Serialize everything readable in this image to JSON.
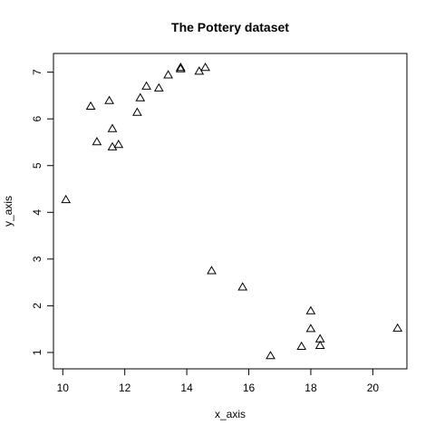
{
  "chart_data": {
    "type": "scatter",
    "title": "The Pottery dataset",
    "xlabel": "x_axis",
    "ylabel": "y_axis",
    "xlim": [
      9.7,
      21.1
    ],
    "ylim": [
      0.65,
      7.4
    ],
    "xticks": [
      10,
      12,
      14,
      16,
      18,
      20
    ],
    "yticks": [
      1,
      2,
      3,
      4,
      5,
      6,
      7
    ],
    "marker": "open-triangle",
    "grid": false,
    "series": [
      {
        "points": [
          {
            "x": 10.1,
            "y": 4.26
          },
          {
            "x": 10.9,
            "y": 6.26
          },
          {
            "x": 11.1,
            "y": 5.5
          },
          {
            "x": 11.5,
            "y": 6.38
          },
          {
            "x": 11.6,
            "y": 5.78
          },
          {
            "x": 11.6,
            "y": 5.39
          },
          {
            "x": 11.8,
            "y": 5.44
          },
          {
            "x": 12.4,
            "y": 6.13
          },
          {
            "x": 12.5,
            "y": 6.44
          },
          {
            "x": 12.7,
            "y": 6.69
          },
          {
            "x": 13.1,
            "y": 6.65
          },
          {
            "x": 13.4,
            "y": 6.93
          },
          {
            "x": 13.8,
            "y": 7.06
          },
          {
            "x": 13.8,
            "y": 7.09
          },
          {
            "x": 14.4,
            "y": 7.01
          },
          {
            "x": 14.6,
            "y": 7.09
          },
          {
            "x": 14.8,
            "y": 2.74
          },
          {
            "x": 15.8,
            "y": 2.39
          },
          {
            "x": 16.7,
            "y": 0.92
          },
          {
            "x": 17.7,
            "y": 1.12
          },
          {
            "x": 18.0,
            "y": 1.88
          },
          {
            "x": 18.0,
            "y": 1.5
          },
          {
            "x": 18.3,
            "y": 1.28
          },
          {
            "x": 18.3,
            "y": 1.14
          },
          {
            "x": 20.8,
            "y": 1.51
          }
        ]
      }
    ]
  }
}
